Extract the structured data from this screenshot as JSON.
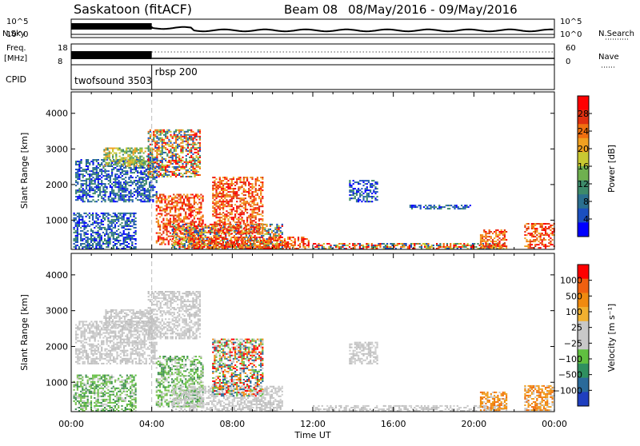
{
  "header": {
    "title": "Saskatoon (fitACF)",
    "beam": "Beam 08",
    "date_range": "08/May/2016 - 09/May/2016"
  },
  "top_panels": {
    "nsky_label": "N.Sky",
    "nsky_ticks": [
      "10^5",
      "10^0"
    ],
    "nsearch_label": "N.Search",
    "nsearch_ticks": [
      "10^5",
      "10^0"
    ],
    "freq_label_1": "Freq.",
    "freq_label_2": "[MHz]",
    "freq_ticks": [
      "18",
      "8"
    ],
    "nave_label": "Nave",
    "nave_ticks": [
      "60",
      "0"
    ],
    "cpid_label": "CPID",
    "cpid_entries": [
      {
        "name": "twofsound",
        "id": "3503",
        "start_hour": 0
      },
      {
        "name": "rbsp",
        "id": "200",
        "start_hour": 4.0
      }
    ]
  },
  "chart_data": [
    {
      "type": "heatmap",
      "title": "",
      "xlabel": "Time UT",
      "ylabel": "Slant Range [km]",
      "xlim": [
        0,
        24
      ],
      "ylim": [
        180,
        4600
      ],
      "x_ticks": [
        "00:00",
        "04:00",
        "08:00",
        "12:00",
        "16:00",
        "20:00",
        "00:00"
      ],
      "y_ticks": [
        1000,
        2000,
        3000,
        4000
      ],
      "colorbar": {
        "label": "Power [dB]",
        "range": [
          0,
          32
        ],
        "ticks": [
          "4",
          "8",
          "12",
          "16",
          "20",
          "24",
          "28"
        ],
        "colors": [
          "#0000ff",
          "#1b4fbf",
          "#2a6f8f",
          "#3d8a6a",
          "#6fb04f",
          "#c8c832",
          "#f0a020",
          "#f07010",
          "#e03010",
          "#ff0000"
        ]
      },
      "echo_regions": [
        {
          "t0": 0.2,
          "t1": 4.2,
          "r0": 1500,
          "r1": 2700,
          "level": "low"
        },
        {
          "t0": 1.6,
          "t1": 4.0,
          "r0": 2500,
          "r1": 3000,
          "level": "mid"
        },
        {
          "t0": 0.1,
          "t1": 3.2,
          "r0": 180,
          "r1": 1200,
          "level": "low"
        },
        {
          "t0": 3.8,
          "t1": 6.4,
          "r0": 2200,
          "r1": 3550,
          "level": "mixed"
        },
        {
          "t0": 4.2,
          "t1": 6.5,
          "r0": 300,
          "r1": 1700,
          "level": "high"
        },
        {
          "t0": 5.0,
          "t1": 10.5,
          "r0": 180,
          "r1": 900,
          "level": "mixed"
        },
        {
          "t0": 5.8,
          "t1": 11.8,
          "r0": 180,
          "r1": 500,
          "level": "high"
        },
        {
          "t0": 7.0,
          "t1": 9.5,
          "r0": 600,
          "r1": 2200,
          "level": "high"
        },
        {
          "t0": 13.8,
          "t1": 15.2,
          "r0": 1500,
          "r1": 2100,
          "level": "low"
        },
        {
          "t0": 12.0,
          "t1": 21.5,
          "r0": 180,
          "r1": 320,
          "level": "mixed"
        },
        {
          "t0": 20.3,
          "t1": 21.6,
          "r0": 200,
          "r1": 700,
          "level": "high"
        },
        {
          "t0": 22.5,
          "t1": 24.0,
          "r0": 200,
          "r1": 900,
          "level": "high"
        },
        {
          "t0": 16.8,
          "t1": 19.8,
          "r0": 1300,
          "r1": 1400,
          "level": "low"
        }
      ]
    },
    {
      "type": "heatmap",
      "title": "",
      "xlabel": "Time UT",
      "ylabel": "Slant Range [km]",
      "xlim": [
        0,
        24
      ],
      "ylim": [
        180,
        4600
      ],
      "x_ticks": [
        "00:00",
        "04:00",
        "08:00",
        "12:00",
        "16:00",
        "20:00",
        "00:00"
      ],
      "y_ticks": [
        1000,
        2000,
        3000,
        4000
      ],
      "colorbar": {
        "label": "Velocity [m s⁻¹]",
        "range": [
          -1200,
          1200
        ],
        "ticks": [
          "1000",
          "500",
          "100",
          "25",
          "−25",
          "−100",
          "−500",
          "−1000"
        ],
        "colors": [
          "#1f3fbf",
          "#2a6a9a",
          "#2f8f5f",
          "#60c040",
          "#c8c8c8",
          "#c8c8c8",
          "#f0b030",
          "#f08a10",
          "#f06010",
          "#ff0000"
        ]
      },
      "echo_regions": [
        {
          "t0": 0.2,
          "t1": 4.2,
          "r0": 1500,
          "r1": 2700,
          "level": "gray"
        },
        {
          "t0": 1.6,
          "t1": 4.0,
          "r0": 2500,
          "r1": 3000,
          "level": "gray"
        },
        {
          "t0": 0.1,
          "t1": 3.2,
          "r0": 180,
          "r1": 1200,
          "level": "green"
        },
        {
          "t0": 3.8,
          "t1": 6.4,
          "r0": 2200,
          "r1": 3550,
          "level": "gray"
        },
        {
          "t0": 4.2,
          "t1": 6.5,
          "r0": 300,
          "r1": 1700,
          "level": "green"
        },
        {
          "t0": 5.0,
          "t1": 10.5,
          "r0": 180,
          "r1": 900,
          "level": "gray"
        },
        {
          "t0": 7.0,
          "t1": 9.5,
          "r0": 600,
          "r1": 2200,
          "level": "mixed"
        },
        {
          "t0": 13.8,
          "t1": 15.2,
          "r0": 1500,
          "r1": 2100,
          "level": "gray"
        },
        {
          "t0": 12.0,
          "t1": 21.5,
          "r0": 180,
          "r1": 320,
          "level": "gray"
        },
        {
          "t0": 20.3,
          "t1": 21.6,
          "r0": 200,
          "r1": 700,
          "level": "orange"
        },
        {
          "t0": 22.5,
          "t1": 24.0,
          "r0": 200,
          "r1": 900,
          "level": "orange"
        }
      ]
    }
  ]
}
